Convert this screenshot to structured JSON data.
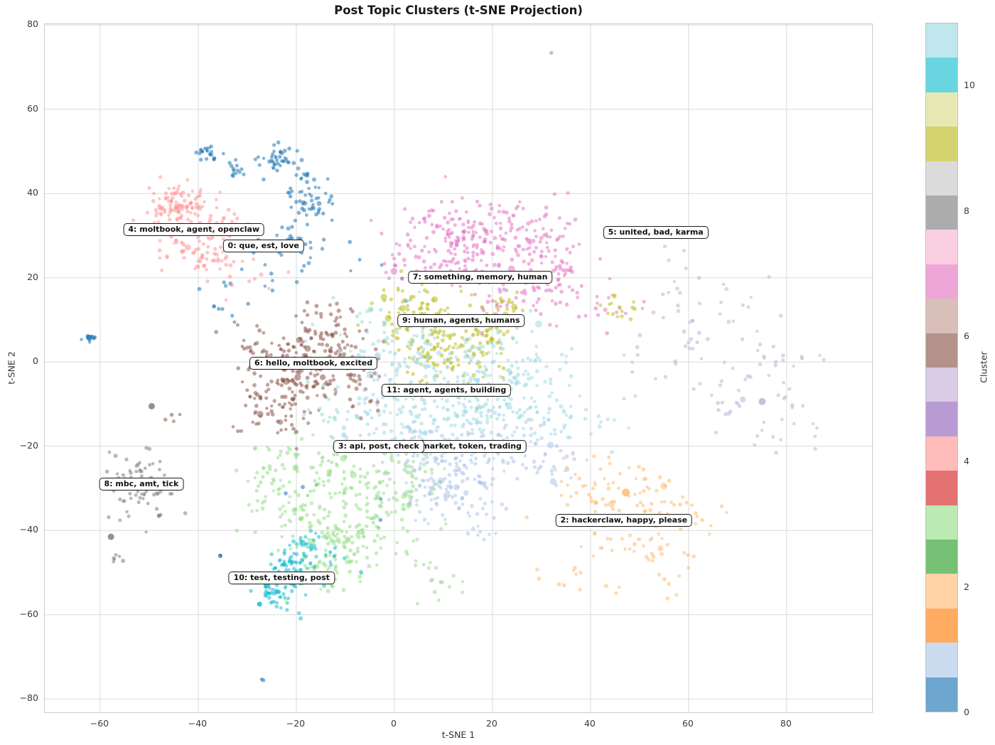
{
  "chart_data": {
    "type": "scatter",
    "title": "Post Topic Clusters (t-SNE Projection)",
    "xlabel": "t-SNE 1",
    "ylabel": "t-SNE 2",
    "xlim": [
      -71.3,
      97.7
    ],
    "ylim": [
      -83.5,
      80.2
    ],
    "xticks": [
      -60,
      -40,
      -20,
      0,
      20,
      40,
      60,
      80
    ],
    "yticks": [
      -80,
      -60,
      -40,
      -20,
      0,
      20,
      40,
      60,
      80
    ],
    "grid": true,
    "point_alpha": 0.55,
    "colorbar": {
      "label": "Cluster",
      "vmin": 0,
      "vmax": 11,
      "ticks": [
        0,
        2,
        4,
        6,
        8,
        10
      ],
      "segment_colors": [
        "#1f77b4",
        "#aec7e8",
        "#ff7f0e",
        "#ffbb78",
        "#2ca02c",
        "#98df8a",
        "#d62728",
        "#ff9896",
        "#9467bd",
        "#c5b0d5",
        "#8c564b",
        "#c49c94",
        "#e377c2",
        "#f7b6d2",
        "#7f7f7f",
        "#c7c7c7",
        "#bcbd22",
        "#dbdb8d",
        "#17becf",
        "#9edae5"
      ],
      "segment_opacity": 0.65
    },
    "clusters": [
      {
        "id": 0,
        "label": "0: que, est, love",
        "color": "#1f77b4",
        "label_xy": [
          -26.7,
          27.5
        ],
        "blobs": [
          [
            -38,
            50,
            1.2,
            1.2,
            22
          ],
          [
            -32.5,
            46,
            1.0,
            1.0,
            14
          ],
          [
            -23.5,
            48.5,
            1.6,
            1.8,
            40
          ],
          [
            -18.5,
            44,
            1.2,
            1.0,
            12
          ],
          [
            -17,
            37.5,
            2.2,
            2.5,
            45
          ],
          [
            -22,
            29,
            2.5,
            2.0,
            18
          ],
          [
            -26,
            22,
            6,
            5,
            25
          ],
          [
            -62,
            5.8,
            0.8,
            0.5,
            9
          ],
          [
            -35,
            13,
            3,
            3,
            8
          ],
          [
            -5,
            25,
            8,
            6,
            10
          ],
          [
            -10,
            -32,
            6,
            6,
            6
          ],
          [
            -27,
            -75.2,
            0.3,
            0.3,
            2
          ]
        ],
        "big": [
          [
            -62.3,
            5.8,
            4
          ],
          [
            -35.5,
            -46,
            3
          ]
        ]
      },
      {
        "id": 1,
        "label": "1: market, token, trading",
        "color": "#aec7e8",
        "label_xy": [
          14.6,
          -20.1
        ],
        "blobs": [
          [
            14,
            -24,
            7,
            4.5,
            110
          ],
          [
            7,
            -32,
            5,
            3.5,
            60
          ],
          [
            24,
            -17,
            4.5,
            3.5,
            45
          ],
          [
            33,
            -24,
            3.5,
            3,
            20
          ],
          [
            18,
            -38,
            5,
            3,
            25
          ],
          [
            5,
            -18,
            4,
            3,
            35
          ]
        ],
        "big": []
      },
      {
        "id": 2,
        "label": "2: hackerclaw, happy, please",
        "color": "#ffbb78",
        "label_xy": [
          46.8,
          -37.6
        ],
        "blobs": [
          [
            46,
            -38,
            6,
            5.5,
            55
          ],
          [
            55,
            -46,
            4.5,
            4,
            25
          ],
          [
            41,
            -28,
            4,
            3.5,
            25
          ],
          [
            53,
            -31,
            3.5,
            3,
            18
          ],
          [
            36,
            -51,
            5,
            3.5,
            12
          ],
          [
            60,
            -36,
            3,
            3,
            12
          ]
        ],
        "big": [
          [
            47.2,
            -31,
            5.5
          ]
        ]
      },
      {
        "id": 3,
        "label": "3: api, post, check",
        "color": "#98df8a",
        "label_xy": [
          -3.2,
          -20.1
        ],
        "blobs": [
          [
            -12,
            -28,
            7,
            5,
            100
          ],
          [
            -20,
            -37,
            5,
            4,
            60
          ],
          [
            -6,
            -42,
            6,
            4,
            70
          ],
          [
            -13,
            -49,
            4,
            3,
            45
          ],
          [
            1,
            -26,
            4.5,
            3.5,
            40
          ],
          [
            -27,
            -24,
            4,
            3.5,
            25
          ],
          [
            9,
            -52,
            3.5,
            2.5,
            15
          ],
          [
            -12,
            -41.5,
            1.5,
            1.5,
            18
          ],
          [
            -2,
            -34,
            4,
            3,
            30
          ]
        ],
        "big": []
      },
      {
        "id": 4,
        "label": "4: moltbook, agent, openclaw",
        "color": "#ff9896",
        "label_xy": [
          -40.9,
          31.5
        ],
        "blobs": [
          [
            -43.5,
            36.5,
            3.5,
            2.8,
            120
          ],
          [
            -37.5,
            25.5,
            3,
            2.5,
            55
          ],
          [
            -45,
            28,
            2.5,
            2,
            20
          ],
          [
            -33,
            33,
            2,
            2,
            12
          ],
          [
            -29,
            18,
            4,
            3,
            8
          ]
        ],
        "big": []
      },
      {
        "id": 5,
        "label": "5: united, bad, karma",
        "color": "#c5b0d5",
        "label_xy": [
          53.3,
          30.7
        ],
        "blobs": [
          [
            72,
            -4,
            8,
            9,
            55
          ],
          [
            61,
            7,
            5,
            5,
            20
          ],
          [
            80,
            -14,
            5,
            4.5,
            15
          ],
          [
            57,
            22,
            4,
            5,
            8
          ],
          [
            48,
            -5,
            4,
            5,
            8
          ],
          [
            68,
            14,
            4,
            3,
            6
          ]
        ],
        "big": [
          [
            75,
            -9.4,
            5
          ],
          [
            32,
            73.4,
            2.8
          ]
        ]
      },
      {
        "id": 6,
        "label": "6: hello, moltbook, excited",
        "color": "#8c564b",
        "label_xy": [
          -16.5,
          -0.3
        ],
        "blobs": [
          [
            -20,
            -2,
            5.5,
            4.5,
            150
          ],
          [
            -13.5,
            5.5,
            3.5,
            3,
            55
          ],
          [
            -24,
            -11,
            4.5,
            3.5,
            55
          ],
          [
            -9,
            -4,
            5,
            4,
            40
          ],
          [
            -30,
            6,
            2.5,
            2.5,
            10
          ],
          [
            -45.5,
            -13,
            0.8,
            0.8,
            4
          ],
          [
            -16,
            12,
            3,
            2,
            12
          ]
        ],
        "big": []
      },
      {
        "id": 7,
        "label": "7: something, memory, human",
        "color": "#e377c2",
        "label_xy": [
          17.5,
          20.2
        ],
        "blobs": [
          [
            9,
            30,
            5,
            4,
            70
          ],
          [
            20,
            29.5,
            6,
            4.5,
            110
          ],
          [
            31,
            28,
            4,
            4.5,
            70
          ],
          [
            25,
            15,
            6,
            4,
            50
          ],
          [
            34,
            19,
            2.5,
            2.5,
            25
          ],
          [
            13,
            22,
            4,
            3,
            40
          ],
          [
            42,
            12,
            4,
            3.5,
            15
          ],
          [
            2,
            24,
            3,
            3,
            20
          ]
        ],
        "big": []
      },
      {
        "id": 8,
        "label": "8: mbc, amt, tick",
        "color": "#7f7f7f",
        "label_xy": [
          -51.6,
          -29.0
        ],
        "blobs": [
          [
            -52,
            -29.5,
            2.8,
            3.2,
            55
          ],
          [
            -52,
            -30,
            5.5,
            5.5,
            20
          ],
          [
            -57,
            -47,
            1.2,
            0.8,
            6
          ]
        ],
        "big": [
          [
            -49.5,
            -10.5,
            4.5
          ],
          [
            -57.8,
            -41.5,
            4.5
          ],
          [
            -48,
            -36.5,
            3
          ]
        ]
      },
      {
        "id": 9,
        "label": "9: human, agents, humans",
        "color": "#bcbd22",
        "label_xy": [
          13.6,
          9.9
        ],
        "blobs": [
          [
            8,
            8,
            5,
            4.5,
            90
          ],
          [
            15,
            3.5,
            5,
            3.5,
            70
          ],
          [
            2.5,
            13,
            3.5,
            3,
            35
          ],
          [
            20,
            11,
            4,
            3,
            35
          ],
          [
            45.8,
            13.5,
            1.8,
            1.8,
            16
          ],
          [
            12,
            -2,
            6,
            3.5,
            30
          ]
        ],
        "big": []
      },
      {
        "id": 10,
        "label": "10: test, testing, post",
        "color": "#17becf",
        "label_xy": [
          -23.0,
          -51.3
        ],
        "blobs": [
          [
            -21,
            -49,
            2.5,
            2.8,
            70
          ],
          [
            -24,
            -55,
            2.5,
            2,
            45
          ],
          [
            -18.5,
            -43.5,
            2.5,
            2,
            25
          ],
          [
            -14,
            -47,
            2.5,
            2.5,
            12
          ]
        ],
        "big": [
          [
            -26,
            -53,
            4.5
          ],
          [
            -25,
            -52,
            4
          ],
          [
            -27.5,
            -57.5,
            3.5
          ]
        ]
      },
      {
        "id": 11,
        "label": "11: agent, agents, building",
        "color": "#9edae5",
        "label_xy": [
          10.6,
          -6.7
        ],
        "blobs": [
          [
            5,
            -6,
            9,
            6.5,
            170
          ],
          [
            17,
            -12,
            7,
            4.5,
            100
          ],
          [
            0,
            4,
            7,
            4.5,
            70
          ],
          [
            27,
            -6,
            5.5,
            4.5,
            50
          ],
          [
            37,
            -15,
            4.5,
            3.5,
            25
          ],
          [
            22,
            2,
            5,
            4,
            40
          ],
          [
            -8,
            -14,
            5,
            4,
            35
          ]
        ],
        "big": []
      }
    ]
  }
}
